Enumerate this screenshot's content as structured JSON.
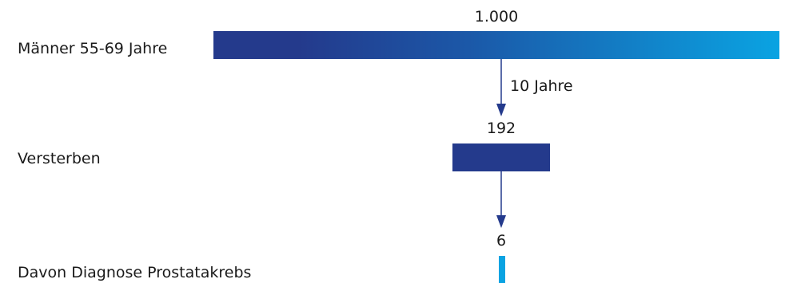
{
  "colors": {
    "dark_blue": "#243a8c",
    "light_blue": "#0aa3e2",
    "arrow": "#243a8c"
  },
  "rows": {
    "total": {
      "label": "Männer 55-69 Jahre",
      "value_label": "1.000",
      "value": 1000
    },
    "deceased": {
      "label": "Versterben",
      "value_label": "192",
      "value": 192
    },
    "cancer": {
      "label": "Davon Diagnose Prostatakrebs",
      "value_label": "6",
      "value": 6
    }
  },
  "arrows": {
    "period_label": "10 Jahre"
  }
}
